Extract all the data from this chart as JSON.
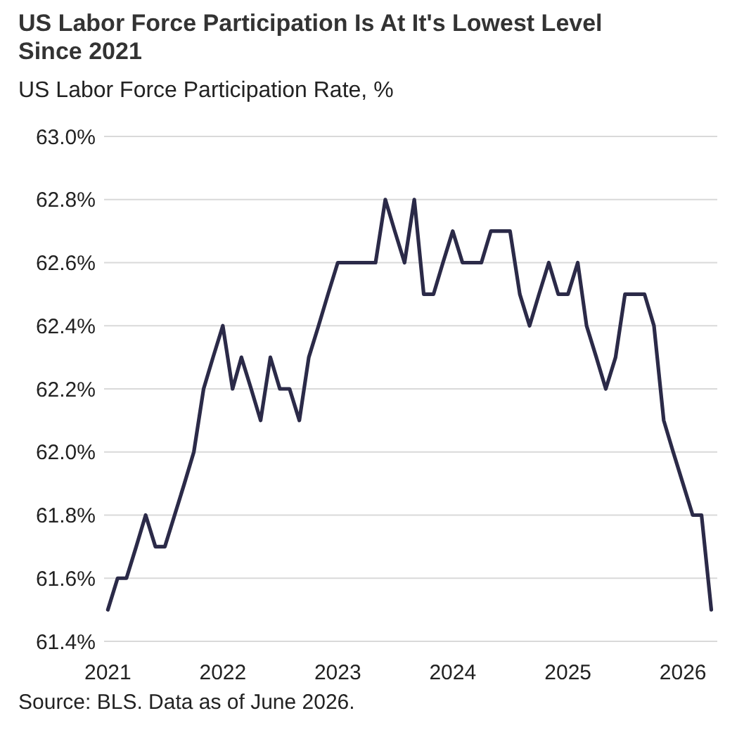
{
  "chart_data": {
    "type": "line",
    "title": "US Labor Force Participation Is At It's Lowest Level Since 2021",
    "subtitle": "US Labor Force Participation Rate, %",
    "x": [
      "2021-01",
      "2021-02",
      "2021-03",
      "2021-04",
      "2021-05",
      "2021-06",
      "2021-07",
      "2021-08",
      "2021-09",
      "2021-10",
      "2021-11",
      "2021-12",
      "2022-01",
      "2022-02",
      "2022-03",
      "2022-04",
      "2022-05",
      "2022-06",
      "2022-07",
      "2022-08",
      "2022-09",
      "2022-10",
      "2022-11",
      "2022-12",
      "2023-01",
      "2023-02",
      "2023-03",
      "2023-04",
      "2023-05",
      "2023-06",
      "2023-07",
      "2023-08",
      "2023-09",
      "2023-10",
      "2023-11",
      "2023-12",
      "2024-01",
      "2024-02",
      "2024-03",
      "2024-04",
      "2024-05",
      "2024-06",
      "2024-07",
      "2024-08",
      "2024-09",
      "2024-10",
      "2024-11",
      "2024-12",
      "2025-01",
      "2025-02",
      "2025-03",
      "2025-04",
      "2025-05",
      "2025-06",
      "2025-07",
      "2025-08",
      "2025-09",
      "2025-10",
      "2025-11",
      "2025-12",
      "2026-01",
      "2026-02",
      "2026-03",
      "2026-04"
    ],
    "series": [
      {
        "color": "#2b2a48",
        "values": [
          61.5,
          61.6,
          61.6,
          61.7,
          61.8,
          61.7,
          61.7,
          61.8,
          61.9,
          62.0,
          62.2,
          62.3,
          62.4,
          62.2,
          62.3,
          62.2,
          62.1,
          62.3,
          62.2,
          62.2,
          62.1,
          62.3,
          62.4,
          62.5,
          62.6,
          62.6,
          62.6,
          62.6,
          62.6,
          62.8,
          62.7,
          62.6,
          62.8,
          62.5,
          62.5,
          62.6,
          62.7,
          62.6,
          62.6,
          62.6,
          62.7,
          62.7,
          62.7,
          62.5,
          62.4,
          62.5,
          62.6,
          62.5,
          62.5,
          62.6,
          62.4,
          62.3,
          62.2,
          62.3,
          62.5,
          62.5,
          62.5,
          62.4,
          62.1,
          62.0,
          61.9,
          61.8,
          61.8,
          61.5
        ]
      }
    ],
    "xlim": [
      "2020-12-20",
      "2026-04-20"
    ],
    "xticks": [
      {
        "value": "2021-01",
        "label": "2021"
      },
      {
        "value": "2022-01",
        "label": "2022"
      },
      {
        "value": "2023-01",
        "label": "2023"
      },
      {
        "value": "2024-01",
        "label": "2024"
      },
      {
        "value": "2025-01",
        "label": "2025"
      },
      {
        "value": "2026-01",
        "label": "2026"
      }
    ],
    "ylim": [
      61.4,
      63.0
    ],
    "yticks": [
      {
        "value": 61.4,
        "label": "61.4%"
      },
      {
        "value": 61.6,
        "label": "61.6%"
      },
      {
        "value": 61.8,
        "label": "61.8%"
      },
      {
        "value": 62.0,
        "label": "62.0%"
      },
      {
        "value": 62.2,
        "label": "62.2%"
      },
      {
        "value": 62.4,
        "label": "62.4%"
      },
      {
        "value": 62.6,
        "label": "62.6%"
      },
      {
        "value": 62.8,
        "label": "62.8%"
      },
      {
        "value": 63.0,
        "label": "63.0%"
      }
    ],
    "grid": "y",
    "marker": "none",
    "line_style": "solid",
    "annotations": [
      "Source: BLS. Data as of June 2026."
    ]
  }
}
